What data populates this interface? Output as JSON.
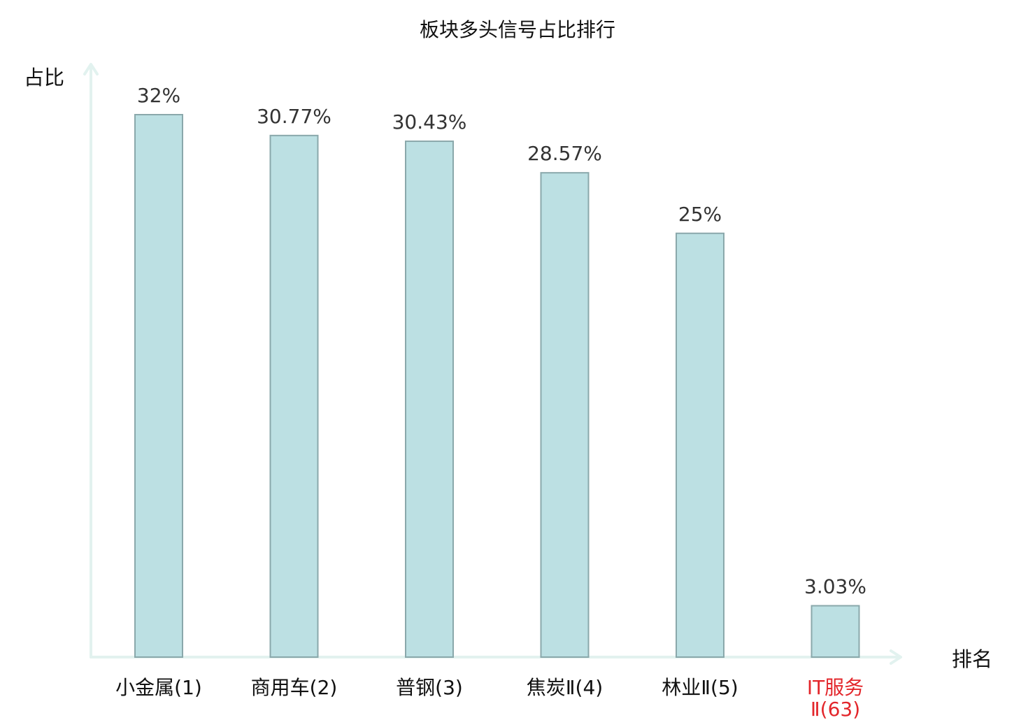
{
  "chart_data": {
    "type": "bar",
    "title": "板块多头信号占比排行",
    "xlabel": "排名",
    "ylabel": "占比",
    "categories": [
      [
        "小金属(1)"
      ],
      [
        "商用车(2)"
      ],
      [
        "普钢(3)"
      ],
      [
        "焦炭Ⅱ(4)"
      ],
      [
        "林业Ⅱ(5)"
      ],
      [
        "IT服务",
        "Ⅱ(63)"
      ]
    ],
    "values": [
      32,
      30.77,
      30.43,
      28.57,
      25,
      3.03
    ],
    "value_labels": [
      "32%",
      "30.77%",
      "30.43%",
      "28.57%",
      "25%",
      "3.03%"
    ],
    "highlight_index": 5,
    "colors": {
      "bar": "#bce0e3",
      "bar_border": "#8aa8ab",
      "axis": "#e2f2ef",
      "highlight": "#e3262b"
    },
    "ylim": [
      0,
      32
    ],
    "grid": false,
    "legend": "none"
  }
}
